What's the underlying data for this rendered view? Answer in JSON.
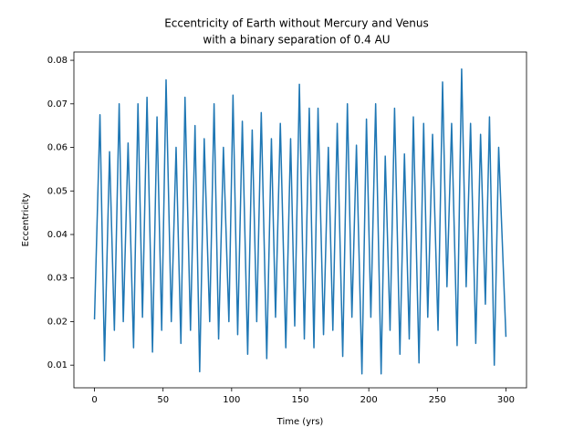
{
  "chart_data": {
    "type": "line",
    "title": [
      "Eccentricity of Earth without Mercury and Venus",
      "with a binary separation of 0.4 AU"
    ],
    "x_label": "Time (yrs)",
    "y_label": "Eccentricity",
    "color": "#1f77b4",
    "x": [
      0,
      4,
      7.3,
      11,
      14.5,
      18,
      21,
      24.5,
      28.5,
      31.7,
      35,
      38.3,
      42.3,
      45.6,
      49,
      52.2,
      56,
      59.5,
      63,
      66,
      70,
      73.3,
      76.7,
      80,
      84,
      87.2,
      90.5,
      94,
      98,
      101,
      104.4,
      107.8,
      111.7,
      115,
      118.3,
      121.6,
      125.6,
      129,
      132,
      135.5,
      139.5,
      143,
      146,
      149.4,
      153,
      156.6,
      160,
      163,
      167,
      170.5,
      173.8,
      177,
      181,
      184.4,
      187.7,
      191,
      195,
      198.3,
      201.5,
      205,
      209,
      212,
      215.5,
      218.8,
      222.7,
      226,
      229.5,
      232.5,
      236.6,
      240,
      243,
      246.5,
      250.5,
      253.8,
      257,
      260.4,
      264.4,
      267.7,
      271,
      274.2,
      278,
      281.5,
      285,
      288,
      291.5,
      294.7,
      300
    ],
    "values": [
      0.0205,
      0.0675,
      0.011,
      0.059,
      0.018,
      0.07,
      0.02,
      0.061,
      0.014,
      0.07,
      0.021,
      0.0715,
      0.013,
      0.067,
      0.018,
      0.0755,
      0.02,
      0.06,
      0.015,
      0.0715,
      0.018,
      0.065,
      0.0085,
      0.062,
      0.02,
      0.07,
      0.016,
      0.06,
      0.02,
      0.072,
      0.017,
      0.066,
      0.0125,
      0.064,
      0.02,
      0.068,
      0.0115,
      0.062,
      0.021,
      0.0655,
      0.014,
      0.062,
      0.019,
      0.0745,
      0.016,
      0.069,
      0.014,
      0.069,
      0.017,
      0.06,
      0.018,
      0.0655,
      0.012,
      0.07,
      0.021,
      0.0605,
      0.008,
      0.0665,
      0.021,
      0.07,
      0.008,
      0.058,
      0.018,
      0.069,
      0.0125,
      0.0585,
      0.016,
      0.067,
      0.0105,
      0.0655,
      0.021,
      0.063,
      0.018,
      0.075,
      0.028,
      0.0655,
      0.0145,
      0.078,
      0.028,
      0.0655,
      0.015,
      0.063,
      0.024,
      0.067,
      0.01,
      0.06,
      0.0165
    ],
    "xlim": [
      -15,
      315
    ],
    "xticks": [
      0,
      50,
      100,
      150,
      200,
      250,
      300
    ],
    "ylim": [
      0.0048,
      0.0819
    ],
    "yticks": [
      0.01,
      0.02,
      0.03,
      0.04,
      0.05,
      0.06,
      0.07,
      0.08
    ]
  }
}
